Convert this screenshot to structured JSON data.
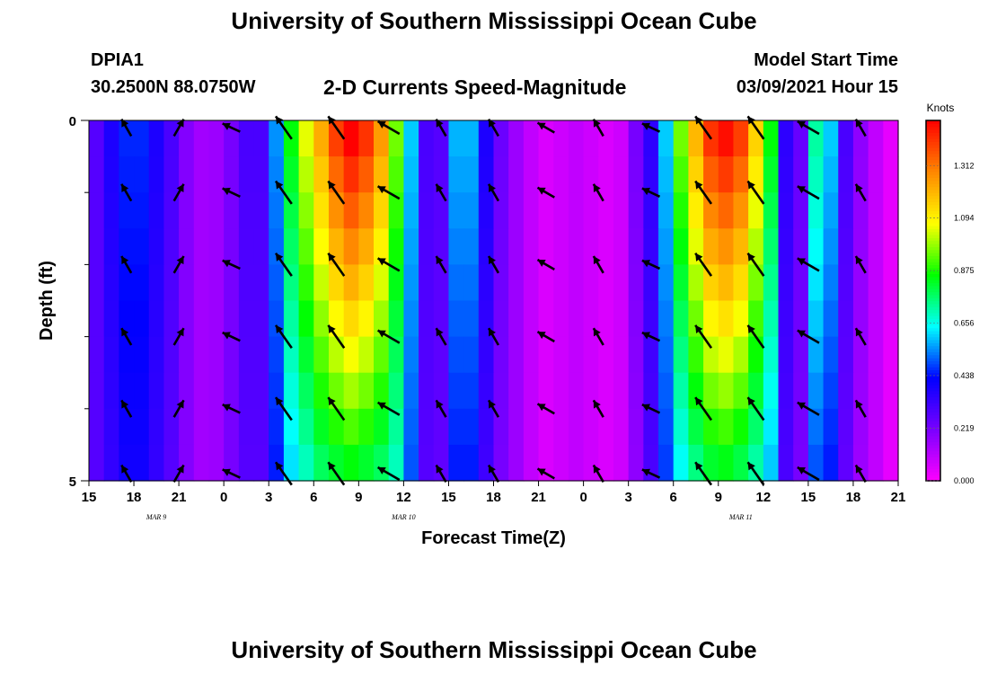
{
  "header": {
    "title": "University of Southern Mississippi Ocean Cube",
    "station": "DPIA1",
    "coords": "30.2500N 88.0750W",
    "subtitle": "2-D Currents Speed-Magnitude",
    "model_start_label": "Model Start Time",
    "model_start_value": "03/09/2021 Hour 15"
  },
  "footer": {
    "title": "University of Southern Mississippi Ocean Cube"
  },
  "chart_data": {
    "type": "heatmap",
    "ylabel": "Depth (ft)",
    "xlabel": "Forecast Time(Z)",
    "units_label": "Knots",
    "ylim": [
      0,
      5
    ],
    "y_tick_labels": [
      "0",
      "5"
    ],
    "xlim_hours_from_start": [
      0,
      54
    ],
    "x_tick_labels": [
      "15",
      "18",
      "21",
      "0",
      "3",
      "6",
      "9",
      "12",
      "15",
      "18",
      "21",
      "0",
      "3",
      "6",
      "9",
      "12",
      "15",
      "18",
      "21"
    ],
    "day_labels": [
      {
        "label": "MAR  9",
        "hour": 4.5
      },
      {
        "label": "MAR  10",
        "hour": 21
      },
      {
        "label": "MAR  11",
        "hour": 43.5
      }
    ],
    "colorbar_ticks": [
      "0.000",
      "0.219",
      "0.438",
      "0.656",
      "0.875",
      "1.094",
      "1.312"
    ],
    "colorbar_range": [
      0,
      1.5
    ],
    "colorscale": [
      "#ff00ff",
      "#7a00ff",
      "#0000ff",
      "#00ffff",
      "#00ff00",
      "#ffff00",
      "#ff8800",
      "#ff0000"
    ],
    "depth_rows_ft": [
      0.25,
      0.75,
      1.25,
      1.75,
      2.25,
      2.75,
      3.25,
      3.75,
      4.25,
      4.75
    ],
    "time_steps_hours": [
      0,
      1,
      2,
      3,
      4,
      5,
      6,
      7,
      8,
      9,
      10,
      11,
      12,
      13,
      14,
      15,
      16,
      17,
      18,
      19,
      20,
      21,
      22,
      23,
      24,
      25,
      26,
      27,
      28,
      29,
      30,
      31,
      32,
      33,
      34,
      35,
      36,
      37,
      38,
      39,
      40,
      41,
      42,
      43,
      44,
      45,
      46,
      47,
      48,
      49,
      50,
      51,
      52,
      53
    ],
    "surface_speed_knots": [
      0.28,
      0.38,
      0.46,
      0.46,
      0.38,
      0.3,
      0.2,
      0.15,
      0.16,
      0.22,
      0.3,
      0.3,
      0.55,
      0.85,
      1.05,
      1.22,
      1.4,
      1.5,
      1.42,
      1.25,
      0.95,
      0.6,
      0.3,
      0.28,
      0.58,
      0.58,
      0.38,
      0.24,
      0.16,
      0.1,
      0.06,
      0.08,
      0.1,
      0.08,
      0.06,
      0.08,
      0.22,
      0.35,
      0.6,
      0.95,
      1.2,
      1.42,
      1.48,
      1.4,
      1.15,
      0.85,
      0.35,
      0.25,
      0.72,
      0.6,
      0.3,
      0.18,
      0.1,
      0.04
    ],
    "bottom_speed_knots": [
      0.28,
      0.34,
      0.4,
      0.4,
      0.34,
      0.28,
      0.2,
      0.15,
      0.16,
      0.22,
      0.28,
      0.28,
      0.45,
      0.62,
      0.7,
      0.78,
      0.82,
      0.85,
      0.82,
      0.78,
      0.7,
      0.5,
      0.28,
      0.26,
      0.45,
      0.45,
      0.32,
      0.22,
      0.16,
      0.1,
      0.06,
      0.08,
      0.1,
      0.08,
      0.06,
      0.08,
      0.18,
      0.3,
      0.48,
      0.65,
      0.75,
      0.82,
      0.84,
      0.8,
      0.72,
      0.6,
      0.3,
      0.22,
      0.5,
      0.45,
      0.26,
      0.16,
      0.1,
      0.04
    ],
    "vector_times_hours": [
      2.5,
      6,
      9.5,
      13,
      16.5,
      20,
      23.5,
      27,
      30.5,
      34,
      37.5,
      41,
      44.5,
      48,
      51.5
    ],
    "vector_depths_ft": [
      0.1,
      1.0,
      2.0,
      3.0,
      4.0,
      4.9
    ],
    "vector_direction_deg": [
      -30,
      30,
      -65,
      -35,
      -35,
      -60,
      -30,
      -30,
      -60,
      -30,
      -65,
      -35,
      -35,
      -60,
      -30
    ],
    "vector_length_knots": [
      0.35,
      0.35,
      0.35,
      0.5,
      0.5,
      0.45,
      0.35,
      0.35,
      0.35,
      0.35,
      0.35,
      0.5,
      0.5,
      0.45,
      0.35
    ]
  }
}
